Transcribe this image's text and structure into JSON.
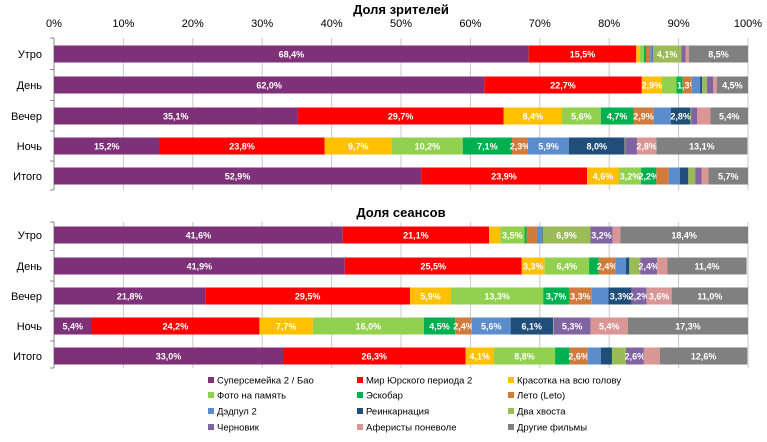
{
  "series_names": [
    "Суперсемейка 2 / Бао",
    "Мир Юрского периода 2",
    "Красотка на всю голову",
    "Фото на память",
    "Эскобар",
    "Лето (Leto)",
    "Дэдпул 2",
    "Реинкарнация",
    "Два хвоста",
    "Черновик",
    "Аферисты поневоле",
    "Другие фильмы"
  ],
  "colors": [
    "#7E3179",
    "#FF0000",
    "#FFC000",
    "#92D050",
    "#00B050",
    "#D07B3B",
    "#5B8CCB",
    "#1F4E79",
    "#9BBB59",
    "#8064A2",
    "#DA9694",
    "#808080"
  ],
  "chart_data": [
    {
      "type": "bar",
      "orientation": "horizontal",
      "stacked": "100%",
      "title": "Доля зрителей",
      "xlim": [
        0,
        100
      ],
      "x_ticks": [
        "0%",
        "10%",
        "20%",
        "30%",
        "40%",
        "50%",
        "60%",
        "70%",
        "80%",
        "90%",
        "100%"
      ],
      "grid": true,
      "categories": [
        "Утро",
        "День",
        "Вечер",
        "Ночь",
        "Итого"
      ],
      "values": [
        [
          68.4,
          15.5,
          0.5,
          0.6,
          0.3,
          0.6,
          0.3,
          0.1,
          4.1,
          0.6,
          0.5,
          8.5
        ],
        [
          62.0,
          22.7,
          2.9,
          2.1,
          0.9,
          1.3,
          1.2,
          0.3,
          0.7,
          0.9,
          0.5,
          4.5
        ],
        [
          35.1,
          29.7,
          8.4,
          5.6,
          4.7,
          2.9,
          2.5,
          2.8,
          0.1,
          0.9,
          1.9,
          5.4
        ],
        [
          15.2,
          23.8,
          9.7,
          10.2,
          7.1,
          2.3,
          5.9,
          8.0,
          0.1,
          1.7,
          2.8,
          13.1
        ],
        [
          52.9,
          23.9,
          4.6,
          3.2,
          2.2,
          1.8,
          1.6,
          1.2,
          1.0,
          0.9,
          1.0,
          5.7
        ]
      ],
      "labels": [
        [
          "68,4%",
          "15,5%",
          "",
          "",
          "",
          "",
          "",
          "",
          "4,1%",
          "",
          "",
          "8,5%"
        ],
        [
          "62,0%",
          "22,7%",
          "2,9%",
          "",
          "",
          "1,3%",
          "",
          "",
          "",
          "",
          "",
          "4,5%"
        ],
        [
          "35,1%",
          "29,7%",
          "8,4%",
          "5,6%",
          "4,7%",
          "2,9%",
          "",
          "2,8%",
          "",
          "",
          "",
          "5,4%"
        ],
        [
          "15,2%",
          "23,8%",
          "9,7%",
          "10,2%",
          "7,1%",
          "2,3%",
          "5,9%",
          "8,0%",
          "",
          "",
          "2,8%",
          "13,1%"
        ],
        [
          "52,9%",
          "23,9%",
          "4,6%",
          "3,2%",
          "2,2%",
          "",
          "",
          "",
          "",
          "",
          "",
          "5,7%"
        ]
      ]
    },
    {
      "type": "bar",
      "orientation": "horizontal",
      "stacked": "100%",
      "title": "Доля сеансов",
      "xlim": [
        0,
        100
      ],
      "grid": true,
      "categories": [
        "Утро",
        "День",
        "Вечер",
        "Ночь",
        "Итого"
      ],
      "values": [
        [
          41.6,
          21.1,
          1.6,
          3.5,
          0.3,
          1.5,
          0.7,
          0.1,
          6.9,
          3.2,
          1.1,
          18.4
        ],
        [
          41.9,
          25.5,
          3.3,
          6.4,
          1.4,
          2.4,
          1.5,
          0.5,
          1.6,
          2.4,
          1.5,
          11.4
        ],
        [
          21.8,
          29.5,
          5.9,
          13.3,
          3.7,
          3.3,
          2.4,
          3.3,
          0.0,
          2.2,
          3.6,
          11.0
        ],
        [
          5.4,
          24.2,
          7.7,
          16.0,
          4.5,
          2.4,
          5.6,
          6.1,
          0.1,
          5.3,
          5.4,
          17.3
        ],
        [
          33.0,
          26.3,
          4.1,
          8.8,
          2.1,
          2.6,
          1.9,
          1.6,
          2.0,
          2.6,
          2.3,
          12.6
        ]
      ],
      "labels": [
        [
          "41,6%",
          "21,1%",
          "",
          "3,5%",
          "",
          "",
          "",
          "",
          "6,9%",
          "3,2%",
          "",
          "18,4%"
        ],
        [
          "41,9%",
          "25,5%",
          "3,3%",
          "6,4%",
          "",
          "2,4%",
          "",
          "",
          "",
          "2,4%",
          "",
          "11,4%"
        ],
        [
          "21,8%",
          "29,5%",
          "5,9%",
          "13,3%",
          "3,7%",
          "3,3%",
          "",
          "3,3%",
          "",
          "2,2%",
          "3,6%",
          "11,0%"
        ],
        [
          "5,4%",
          "24,2%",
          "7,7%",
          "16,0%",
          "4,5%",
          "2,4%",
          "5,6%",
          "6,1%",
          "",
          "5,3%",
          "5,4%",
          "17,3%"
        ],
        [
          "33,0%",
          "26,3%",
          "4,1%",
          "8,8%",
          "",
          "2,6%",
          "",
          "",
          "",
          "2,6%",
          "",
          "12,6%"
        ]
      ]
    }
  ],
  "legend": {
    "placement": "bottom"
  }
}
